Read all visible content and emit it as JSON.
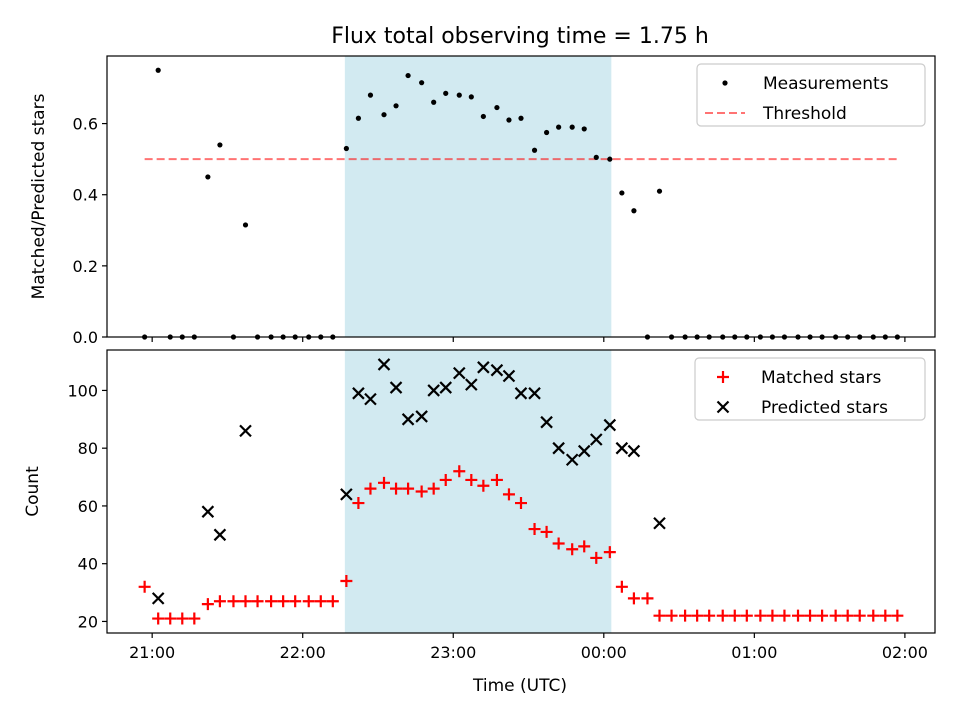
{
  "chart_data": {
    "type": "scatter",
    "title": "Flux total observing time = 1.75 h",
    "xlabel": "Time (UTC)",
    "x_tick_labels": [
      "21:00",
      "22:00",
      "23:00",
      "00:00",
      "01:00",
      "02:00"
    ],
    "x_tick_hours": [
      0,
      1,
      2,
      3,
      4,
      5
    ],
    "x_range_hours": [
      -0.3,
      5.2
    ],
    "shaded_interval_hours": [
      1.28,
      3.05
    ],
    "colors": {
      "shade": "#add8e6",
      "threshold": "#ff0000",
      "matched": "#ff0000",
      "predicted": "#000000",
      "measurements": "#000000"
    },
    "panels": [
      {
        "ylabel": "Matched/Predicted stars",
        "ylim": [
          0,
          0.79
        ],
        "y_ticks": [
          "0.0",
          "0.2",
          "0.4",
          "0.6"
        ],
        "y_tick_values": [
          0,
          0.2,
          0.4,
          0.6
        ],
        "legend_position": "upper right",
        "threshold": {
          "name": "Threshold",
          "value": 0.5,
          "x_range_hours": [
            -0.05,
            4.95
          ]
        },
        "series": [
          {
            "name": "Measurements",
            "marker": "dot",
            "x": [
              -0.05,
              0.04,
              0.12,
              0.2,
              0.28,
              0.37,
              0.45,
              0.54,
              0.62,
              0.7,
              0.79,
              0.87,
              0.95,
              1.04,
              1.12,
              1.2,
              1.29,
              1.37,
              1.45,
              1.54,
              1.62,
              1.7,
              1.79,
              1.87,
              1.95,
              2.04,
              2.12,
              2.2,
              2.29,
              2.37,
              2.45,
              2.54,
              2.62,
              2.7,
              2.79,
              2.87,
              2.95,
              3.04,
              3.12,
              3.2,
              3.29,
              3.37,
              3.45,
              3.54,
              3.62,
              3.7,
              3.79,
              3.87,
              3.95,
              4.04,
              4.12,
              4.2,
              4.29,
              4.37,
              4.45,
              4.54,
              4.62,
              4.7,
              4.79,
              4.87,
              4.95
            ],
            "y": [
              0,
              0.75,
              0,
              0,
              0,
              0.45,
              0.54,
              0,
              0.315,
              0,
              0,
              0,
              0,
              0,
              0,
              0,
              0.53,
              0.615,
              0.68,
              0.625,
              0.65,
              0.735,
              0.715,
              0.66,
              0.685,
              0.68,
              0.675,
              0.62,
              0.645,
              0.61,
              0.615,
              0.525,
              0.575,
              0.59,
              0.59,
              0.585,
              0.505,
              0.5,
              0.405,
              0.355,
              0,
              0.41,
              0,
              0,
              0,
              0,
              0,
              0,
              0,
              0,
              0,
              0,
              0,
              0,
              0,
              0,
              0,
              0,
              0,
              0,
              0
            ]
          }
        ]
      },
      {
        "ylabel": "Count",
        "ylim": [
          16,
          114
        ],
        "y_ticks": [
          "20",
          "40",
          "60",
          "80",
          "100"
        ],
        "y_tick_values": [
          20,
          40,
          60,
          80,
          100
        ],
        "legend_position": "upper right",
        "series": [
          {
            "name": "Matched stars",
            "marker": "plus",
            "x": [
              -0.05,
              0.04,
              0.12,
              0.2,
              0.28,
              0.37,
              0.45,
              0.54,
              0.62,
              0.7,
              0.79,
              0.87,
              0.95,
              1.04,
              1.12,
              1.2,
              1.29,
              1.37,
              1.45,
              1.54,
              1.62,
              1.7,
              1.79,
              1.87,
              1.95,
              2.04,
              2.12,
              2.2,
              2.29,
              2.37,
              2.45,
              2.54,
              2.62,
              2.7,
              2.79,
              2.87,
              2.95,
              3.04,
              3.12,
              3.2,
              3.29,
              3.37,
              3.45,
              3.54,
              3.62,
              3.7,
              3.79,
              3.87,
              3.95,
              4.04,
              4.12,
              4.2,
              4.29,
              4.37,
              4.45,
              4.54,
              4.62,
              4.7,
              4.79,
              4.87,
              4.95
            ],
            "y": [
              32,
              21,
              21,
              21,
              21,
              26,
              27,
              27,
              27,
              27,
              27,
              27,
              27,
              27,
              27,
              27,
              34,
              61,
              66,
              68,
              66,
              66,
              65,
              66,
              69,
              72,
              69,
              67,
              69,
              64,
              61,
              52,
              51,
              47,
              45,
              46,
              42,
              44,
              32,
              28,
              28,
              22,
              22,
              22,
              22,
              22,
              22,
              22,
              22,
              22,
              22,
              22,
              22,
              22,
              22,
              22,
              22,
              22,
              22,
              22,
              22
            ]
          },
          {
            "name": "Predicted stars",
            "marker": "x",
            "x": [
              0.04,
              0.37,
              0.45,
              0.62,
              1.29,
              1.37,
              1.45,
              1.54,
              1.62,
              1.7,
              1.79,
              1.87,
              1.95,
              2.04,
              2.12,
              2.2,
              2.29,
              2.37,
              2.45,
              2.54,
              2.62,
              2.7,
              2.79,
              2.87,
              2.95,
              3.04,
              3.12,
              3.2,
              3.37
            ],
            "y": [
              28,
              58,
              50,
              86,
              64,
              99,
              97,
              109,
              101,
              90,
              91,
              100,
              101,
              106,
              102,
              108,
              107,
              105,
              99,
              99,
              89,
              80,
              76,
              79,
              83,
              88,
              80,
              79,
              54
            ]
          }
        ]
      }
    ]
  }
}
